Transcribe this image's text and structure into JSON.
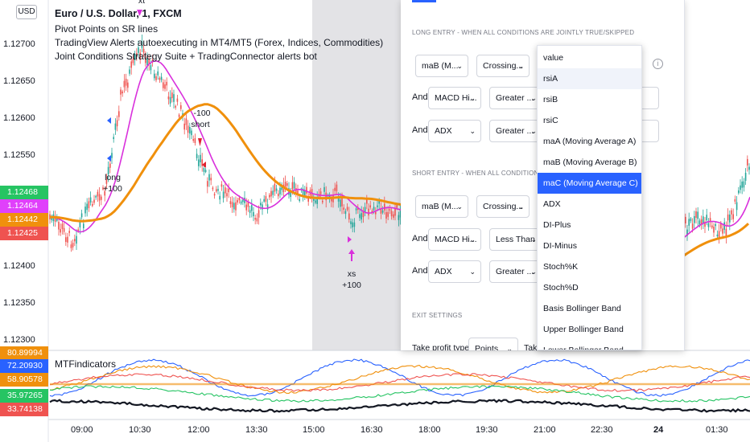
{
  "header": {
    "currency": "USD",
    "symbol_title": "Euro / U.S. Dollar, 1, FXCM",
    "info_lines": [
      "Pivot Points on SR lines",
      "TradingView Alerts autoexecuting in MT4/MT5 (Forex, Indices, Commodities)",
      "Joint Conditions Strategy Suite + TradingConnector alerts bot"
    ]
  },
  "price_axis": {
    "labels": [
      "1.12700",
      "1.12650",
      "1.12600",
      "1.12550",
      "1.12400",
      "1.12350",
      "1.12300"
    ],
    "tags": [
      {
        "text": "1.12468",
        "color": "#26c463"
      },
      {
        "text": "1.12464",
        "color": "#e040fb"
      },
      {
        "text": "1.12442",
        "color": "#f0900c"
      },
      {
        "text": "1.12425",
        "color": "#ef5350"
      }
    ]
  },
  "time_axis": {
    "labels": [
      "09:00",
      "10:30",
      "12:00",
      "13:30",
      "15:00",
      "16:30",
      "18:00",
      "19:30",
      "21:00",
      "22:30",
      "24",
      "01:30"
    ]
  },
  "indicator_pane": {
    "title": "MTFindicators",
    "tags": [
      {
        "text": "80.89994",
        "color": "#f0900c"
      },
      {
        "text": "72.20930",
        "color": "#2962ff"
      },
      {
        "text": "58.90578",
        "color": "#f0900c"
      },
      {
        "text": "35.97265",
        "color": "#26c463"
      },
      {
        "text": "33.74138",
        "color": "#ef5350"
      }
    ]
  },
  "annotations": {
    "top_marker": "xt",
    "short_value": "-100",
    "short_label": "short",
    "long_label": "long",
    "long_value": "+100",
    "xs_label": "xs",
    "xs_value": "+100"
  },
  "settings_panel": {
    "long_header": "LONG ENTRY - WHEN ALL CONDITIONS ARE JOINTLY TRUE/SKIPPED",
    "short_header": "SHORT ENTRY - WHEN ALL CONDITIONS ARE JOINTLY TRUE/SKIPPED",
    "exit_header": "EXIT SETTINGS",
    "and_label": "And",
    "long_rows": [
      {
        "a": "maB (M...",
        "op": "Crossing..."
      },
      {
        "a": "MACD Hi...",
        "op": "Greater ..."
      },
      {
        "a": "ADX",
        "op": "Greater ..."
      }
    ],
    "short_rows": [
      {
        "a": "maB (M...",
        "op": "Crossing..."
      },
      {
        "a": "MACD Hi...",
        "op": "Less Than"
      },
      {
        "a": "ADX",
        "op": "Greater ..."
      }
    ],
    "exit_row": {
      "label": "Take profit type",
      "value": "Points",
      "trail": "Take"
    }
  },
  "dropdown": {
    "items": [
      "value",
      "rsiA",
      "rsiB",
      "rsiC",
      "maA (Moving Average A)",
      "maB (Moving Average B)",
      "maC (Moving Average C)",
      "ADX",
      "DI-Plus",
      "DI-Minus",
      "Stoch%K",
      "Stoch%D",
      "Basis Bollinger Band",
      "Upper Bollinger Band",
      "Lower Bollinger Band"
    ],
    "hover_index": 1,
    "selected_index": 6
  },
  "colors": {
    "up_candle": "#26a69a",
    "down_candle": "#ef5350",
    "magenta_ma": "#d930dc",
    "orange_ma": "#f0900c",
    "selection_blue": "#2962ff",
    "shaded_region": "#e3e3e6"
  }
}
